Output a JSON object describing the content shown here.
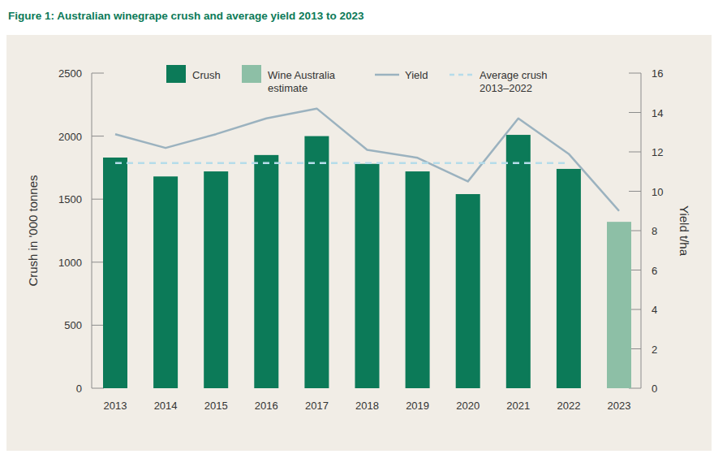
{
  "chart_data": {
    "type": "bar",
    "title": "Figure 1: Australian winegrape crush and average yield 2013 to 2023",
    "categories": [
      "2013",
      "2014",
      "2015",
      "2016",
      "2017",
      "2018",
      "2019",
      "2020",
      "2021",
      "2022",
      "2023"
    ],
    "series": [
      {
        "name": "Crush",
        "type": "bar",
        "color": "#0c7a58",
        "values": [
          1830,
          1680,
          1720,
          1850,
          2000,
          1780,
          1720,
          1540,
          2010,
          1740,
          null
        ]
      },
      {
        "name": "Wine Australia estimate",
        "type": "bar",
        "color": "#8dbfa6",
        "values": [
          null,
          null,
          null,
          null,
          null,
          null,
          null,
          null,
          null,
          null,
          1320
        ]
      },
      {
        "name": "Yield",
        "type": "line",
        "color": "#9bb2bf",
        "line_style": "solid",
        "axis": "y2",
        "values": [
          12.9,
          12.2,
          12.9,
          13.7,
          14.2,
          12.1,
          11.7,
          10.5,
          13.7,
          11.9,
          9.0
        ]
      },
      {
        "name": "Average crush 2013–2022",
        "type": "line",
        "color": "#b5dcea",
        "line_style": "dashed",
        "values": [
          1787,
          1787,
          1787,
          1787,
          1787,
          1787,
          1787,
          1787,
          1787,
          1787,
          null
        ]
      }
    ],
    "y_label": "Crush in '000 tonnes",
    "y2_label": "Yield t/ha",
    "ylim": [
      0,
      2500
    ],
    "yticks": [
      0,
      500,
      1000,
      1500,
      2000,
      2500
    ],
    "y2lim": [
      0,
      16
    ],
    "y2ticks": [
      0,
      2,
      4,
      6,
      8,
      10,
      12,
      14,
      16
    ],
    "stacked": true,
    "legend": "top",
    "grid": false
  }
}
